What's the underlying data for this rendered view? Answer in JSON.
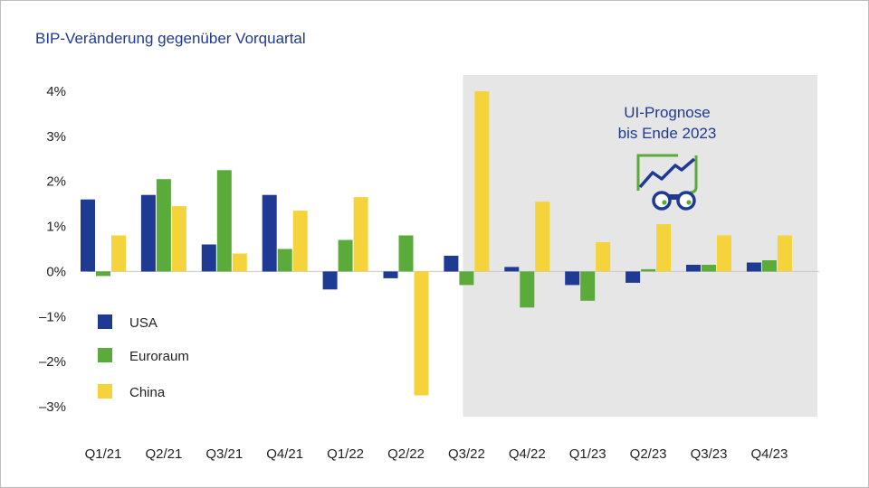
{
  "chart_data": {
    "type": "bar",
    "title": "BIP-Veränderung gegenüber Vorquartal",
    "categories": [
      "Q1/21",
      "Q2/21",
      "Q3/21",
      "Q4/21",
      "Q1/22",
      "Q2/22",
      "Q3/22",
      "Q4/22",
      "Q1/23",
      "Q2/23",
      "Q3/23",
      "Q4/23"
    ],
    "series": [
      {
        "name": "USA",
        "color": "#1f3a93",
        "values": [
          1.6,
          1.7,
          0.6,
          1.7,
          -0.4,
          -0.15,
          0.35,
          0.1,
          -0.3,
          -0.25,
          0.15,
          0.2
        ]
      },
      {
        "name": "Euroraum",
        "color": "#5aab3a",
        "values": [
          -0.1,
          2.05,
          2.25,
          0.5,
          0.7,
          0.8,
          -0.3,
          -0.8,
          -0.65,
          0.05,
          0.15,
          0.25
        ]
      },
      {
        "name": "China",
        "color": "#f5d33a",
        "values": [
          0.8,
          1.45,
          0.4,
          1.35,
          1.65,
          -2.75,
          4.0,
          1.55,
          0.65,
          1.05,
          0.8,
          0.8
        ]
      }
    ],
    "ylim": [
      -3,
      4
    ],
    "yticks": [
      4,
      3,
      2,
      1,
      0,
      -1,
      -2,
      -3
    ],
    "ytick_labels": [
      "4%",
      "3%",
      "2%",
      "1%",
      "0%",
      "–1%",
      "–2%",
      "–3%"
    ],
    "xlabel": "",
    "ylabel": "",
    "legend_position": "lower-left",
    "grid": false,
    "forecast": {
      "start_category": "Q3/22",
      "label_lines": [
        "UI-Prognose",
        "bis Ende 2023"
      ],
      "shade_color": "#e6e6e6",
      "icon": "binoculars-chart-icon"
    }
  }
}
